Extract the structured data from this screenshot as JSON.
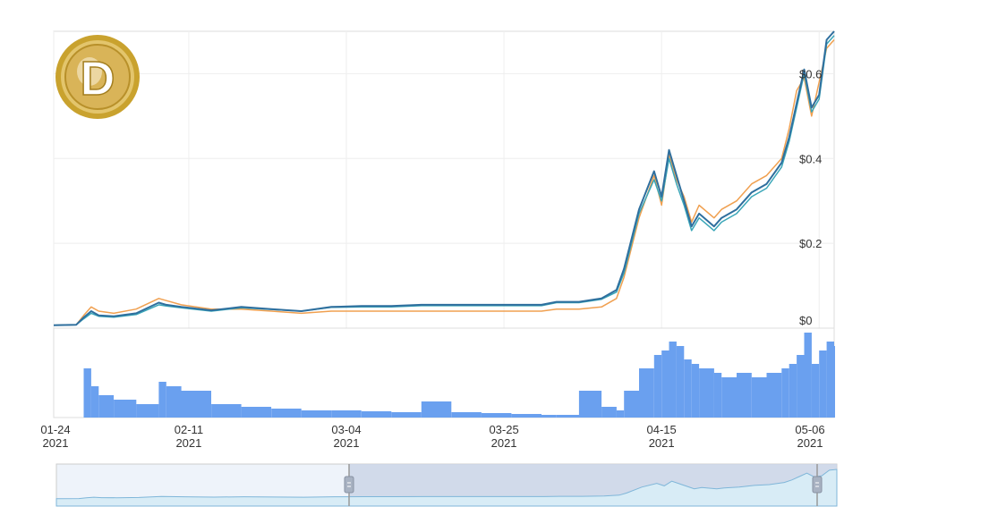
{
  "logo": {
    "letter": "D",
    "icon": "dogecoin-logo-icon"
  },
  "colors": {
    "series_primary": "#2f6f9e",
    "series_secondary": "#f0a050",
    "series_tertiary": "#3aa6b8",
    "volume": "#6aa0ef",
    "navigator_fill": "#c9d3e6",
    "navigator_line": "#7fb6d9",
    "grid": "#eeeeee",
    "border": "#dddddd"
  },
  "chart_data": {
    "type": "line",
    "title": "",
    "xlabel": "",
    "ylabel": "",
    "ylim": [
      0,
      0.7
    ],
    "x_range": [
      "2021-01-24",
      "2021-05-08"
    ],
    "x_tick_labels": [
      {
        "date": "2021-01-24",
        "line1": "01-24",
        "line2": "2021"
      },
      {
        "date": "2021-02-11",
        "line1": "02-11",
        "line2": "2021"
      },
      {
        "date": "2021-03-04",
        "line1": "03-04",
        "line2": "2021"
      },
      {
        "date": "2021-03-25",
        "line1": "03-25",
        "line2": "2021"
      },
      {
        "date": "2021-04-15",
        "line1": "04-15",
        "line2": "2021"
      },
      {
        "date": "2021-05-06",
        "line1": "05-06",
        "line2": "2021"
      }
    ],
    "y_tick_labels": [
      {
        "value": 0,
        "label": "$0"
      },
      {
        "value": 0.2,
        "label": "$0.2"
      },
      {
        "value": 0.4,
        "label": "$0.4"
      },
      {
        "value": 0.6,
        "label": "$0.6"
      }
    ],
    "grid": true,
    "dates": [
      "2021-01-24",
      "2021-01-27",
      "2021-01-28",
      "2021-01-29",
      "2021-01-30",
      "2021-02-01",
      "2021-02-04",
      "2021-02-07",
      "2021-02-08",
      "2021-02-10",
      "2021-02-14",
      "2021-02-18",
      "2021-02-22",
      "2021-02-26",
      "2021-03-02",
      "2021-03-06",
      "2021-03-10",
      "2021-03-14",
      "2021-03-18",
      "2021-03-22",
      "2021-03-26",
      "2021-03-30",
      "2021-04-01",
      "2021-04-04",
      "2021-04-07",
      "2021-04-09",
      "2021-04-10",
      "2021-04-12",
      "2021-04-14",
      "2021-04-15",
      "2021-04-16",
      "2021-04-17",
      "2021-04-18",
      "2021-04-19",
      "2021-04-20",
      "2021-04-22",
      "2021-04-23",
      "2021-04-25",
      "2021-04-27",
      "2021-04-29",
      "2021-05-01",
      "2021-05-02",
      "2021-05-03",
      "2021-05-04",
      "2021-05-05",
      "2021-05-06",
      "2021-05-07",
      "2021-05-08"
    ],
    "series": [
      {
        "key": "primary",
        "values": [
          0.007,
          0.008,
          0.025,
          0.04,
          0.03,
          0.028,
          0.035,
          0.06,
          0.055,
          0.05,
          0.042,
          0.05,
          0.045,
          0.04,
          0.05,
          0.052,
          0.052,
          0.055,
          0.055,
          0.055,
          0.055,
          0.055,
          0.062,
          0.062,
          0.07,
          0.09,
          0.14,
          0.28,
          0.37,
          0.31,
          0.42,
          0.36,
          0.3,
          0.24,
          0.27,
          0.24,
          0.26,
          0.28,
          0.32,
          0.34,
          0.39,
          0.45,
          0.53,
          0.61,
          0.52,
          0.55,
          0.68,
          0.7
        ]
      },
      {
        "key": "secondary",
        "values": [
          0.007,
          0.008,
          0.03,
          0.05,
          0.04,
          0.035,
          0.045,
          0.07,
          0.065,
          0.055,
          0.045,
          0.045,
          0.04,
          0.035,
          0.04,
          0.04,
          0.04,
          0.04,
          0.04,
          0.04,
          0.04,
          0.04,
          0.045,
          0.045,
          0.05,
          0.07,
          0.12,
          0.26,
          0.36,
          0.29,
          0.41,
          0.35,
          0.31,
          0.25,
          0.29,
          0.26,
          0.28,
          0.3,
          0.34,
          0.36,
          0.4,
          0.47,
          0.56,
          0.59,
          0.5,
          0.58,
          0.66,
          0.68
        ]
      },
      {
        "key": "tertiary",
        "values": [
          0.007,
          0.008,
          0.022,
          0.035,
          0.028,
          0.026,
          0.032,
          0.055,
          0.052,
          0.048,
          0.04,
          0.048,
          0.044,
          0.04,
          0.049,
          0.05,
          0.05,
          0.053,
          0.053,
          0.053,
          0.053,
          0.053,
          0.06,
          0.06,
          0.068,
          0.085,
          0.13,
          0.27,
          0.35,
          0.3,
          0.4,
          0.34,
          0.29,
          0.23,
          0.26,
          0.23,
          0.25,
          0.27,
          0.31,
          0.33,
          0.38,
          0.44,
          0.52,
          0.6,
          0.51,
          0.54,
          0.67,
          0.69
        ]
      }
    ],
    "volume": [
      0,
      0,
      0.55,
      0.35,
      0.25,
      0.2,
      0.15,
      0.4,
      0.35,
      0.3,
      0.15,
      0.12,
      0.1,
      0.08,
      0.08,
      0.07,
      0.06,
      0.18,
      0.06,
      0.05,
      0.04,
      0.03,
      0.03,
      0.3,
      0.12,
      0.08,
      0.3,
      0.55,
      0.7,
      0.75,
      0.85,
      0.8,
      0.65,
      0.6,
      0.55,
      0.5,
      0.45,
      0.5,
      0.45,
      0.5,
      0.55,
      0.6,
      0.7,
      0.95,
      0.6,
      0.75,
      0.85,
      0.8
    ],
    "navigator": {
      "selection": [
        "2021-03-04",
        "2021-05-08"
      ]
    }
  }
}
